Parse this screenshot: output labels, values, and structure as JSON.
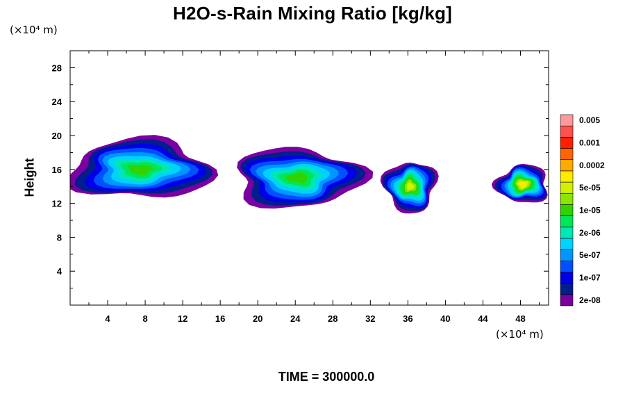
{
  "chart_data": {
    "type": "heatmap",
    "title": "H2O-s-Rain Mixing Ratio [kg/kg]",
    "xlabel": "",
    "ylabel": "Height",
    "x_unit": "(×10⁴ m)",
    "y_unit": "(×10⁴ m)",
    "xlim": [
      0,
      51
    ],
    "ylim": [
      0,
      30
    ],
    "x_ticks": [
      "4",
      "8",
      "12",
      "16",
      "20",
      "24",
      "28",
      "32",
      "36",
      "40",
      "44",
      "48"
    ],
    "y_ticks": [
      "4",
      "8",
      "12",
      "16",
      "20",
      "24",
      "28"
    ],
    "time_label": "TIME = 300000.0",
    "colorbar": {
      "colors": [
        "#7a00a0",
        "#001e8c",
        "#0000e6",
        "#0050ff",
        "#0096ff",
        "#00d2ff",
        "#00e6b4",
        "#00e65a",
        "#32d200",
        "#8ce600",
        "#d2f000",
        "#ffeb00",
        "#ffaa00",
        "#ff6400",
        "#ff1e00",
        "#ff5050",
        "#ff9a9a"
      ],
      "labels": [
        "2e-08",
        "1e-07",
        "5e-07",
        "2e-06",
        "1e-05",
        "5e-05",
        "0.0002",
        "0.001",
        "0.005"
      ]
    },
    "regions": [
      {
        "x": [
          0,
          15
        ],
        "y": [
          12.5,
          19.5
        ],
        "core_level": 8
      },
      {
        "x": [
          17.5,
          31
        ],
        "y": [
          11.5,
          18.5
        ],
        "core_level": 8
      },
      {
        "x": [
          33.5,
          39
        ],
        "y": [
          11,
          17
        ],
        "core_level": 10
      },
      {
        "x": [
          45.5,
          51
        ],
        "y": [
          12,
          16.5
        ],
        "core_level": 11
      }
    ]
  }
}
